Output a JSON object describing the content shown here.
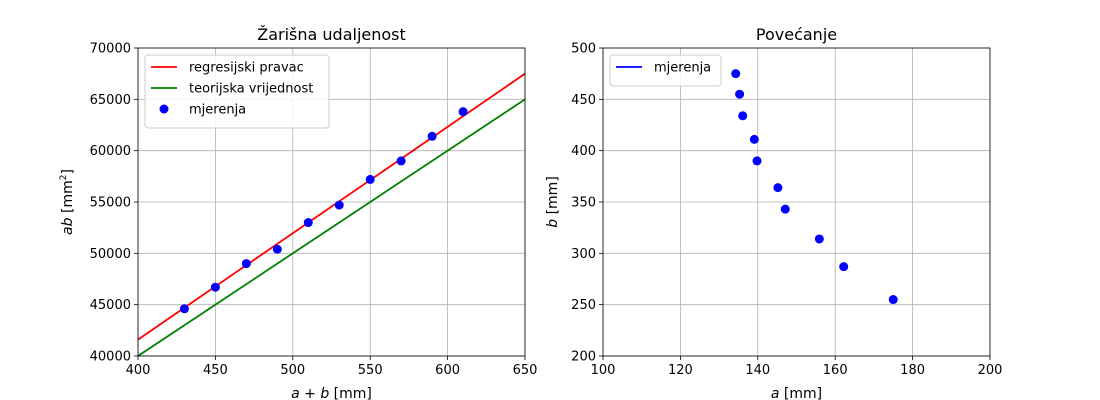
{
  "chart_data": [
    {
      "type": "line",
      "title": "Žarišna udaljenost",
      "xlabel": {
        "var": "a + b",
        "unit": "[mm]"
      },
      "ylabel": {
        "var": "ab",
        "unit_pre": "[mm",
        "unit_sup": "2",
        "unit_post": "]"
      },
      "xlim": [
        400,
        650
      ],
      "ylim": [
        40000,
        70000
      ],
      "xticks": [
        400,
        450,
        500,
        550,
        600,
        650
      ],
      "yticks": [
        40000,
        45000,
        50000,
        55000,
        60000,
        65000,
        70000
      ],
      "grid": true,
      "legend_position": "top-left",
      "series": [
        {
          "name": "regresijski pravac",
          "kind": "line",
          "color": "#ff0000",
          "x": [
            400,
            650
          ],
          "y": [
            41600,
            67500
          ]
        },
        {
          "name": "teorijska vrijednost",
          "kind": "line",
          "color": "#008000",
          "x": [
            400,
            650
          ],
          "y": [
            40000,
            65000
          ]
        },
        {
          "name": "mjerenja",
          "kind": "scatter",
          "color": "#0000ff",
          "x": [
            430,
            450,
            470,
            490,
            510,
            530,
            550,
            570,
            590,
            610
          ],
          "y": [
            44600,
            46700,
            49000,
            50400,
            53000,
            54700,
            57200,
            59000,
            61400,
            63800
          ]
        }
      ]
    },
    {
      "type": "scatter",
      "title": "Povećanje",
      "xlabel": {
        "var": "a",
        "unit": "[mm]"
      },
      "ylabel": {
        "var": "b",
        "unit": "[mm]"
      },
      "xlim": [
        100,
        200
      ],
      "ylim": [
        200,
        500
      ],
      "xticks": [
        100,
        120,
        140,
        160,
        180,
        200
      ],
      "yticks": [
        200,
        250,
        300,
        350,
        400,
        450,
        500
      ],
      "grid": true,
      "legend_position": "top-left",
      "legend": [
        {
          "name": "mjerenja",
          "kind": "line",
          "color": "#0000ff"
        }
      ],
      "series": [
        {
          "name": "mjerenja",
          "kind": "scatter",
          "color": "#0000ff",
          "x": [
            134.3,
            135.3,
            136.1,
            139.1,
            139.8,
            145.2,
            147.1,
            155.9,
            162.2,
            175.0
          ],
          "y": [
            475,
            455,
            434,
            411,
            390,
            364,
            343,
            314,
            287,
            255
          ]
        }
      ]
    }
  ]
}
